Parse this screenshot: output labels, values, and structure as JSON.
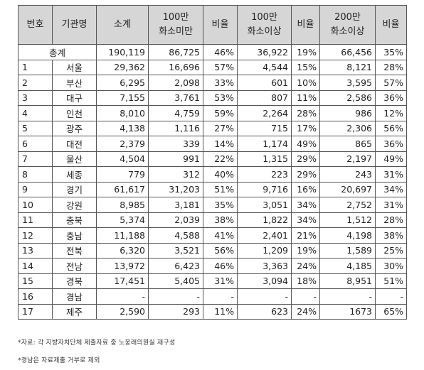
{
  "table": {
    "headers": [
      [
        "번호"
      ],
      [
        "기관명"
      ],
      [
        "소계"
      ],
      [
        "100만",
        "화소미만"
      ],
      [
        "비율"
      ],
      [
        "100만",
        "화소이상"
      ],
      [
        "비율"
      ],
      [
        "200만",
        "화소이상"
      ],
      [
        "비율"
      ]
    ],
    "total": {
      "label": "총계",
      "values": [
        "190,119",
        "86,725",
        "46%",
        "36,922",
        "19%",
        "66,456",
        "35%"
      ]
    },
    "rows": [
      [
        "1",
        "서울",
        "29,362",
        "16,696",
        "57%",
        "4,544",
        "15%",
        "8,121",
        "28%"
      ],
      [
        "2",
        "부산",
        "6,295",
        "2,098",
        "33%",
        "601",
        "10%",
        "3,595",
        "57%"
      ],
      [
        "3",
        "대구",
        "7,155",
        "3,761",
        "53%",
        "807",
        "11%",
        "2,586",
        "36%"
      ],
      [
        "4",
        "인천",
        "8,010",
        "4,759",
        "59%",
        "2,264",
        "28%",
        "986",
        "12%"
      ],
      [
        "5",
        "광주",
        "4,138",
        "1,116",
        "27%",
        "715",
        "17%",
        "2,306",
        "56%"
      ],
      [
        "6",
        "대전",
        "2,379",
        "339",
        "14%",
        "1,174",
        "49%",
        "865",
        "36%"
      ],
      [
        "7",
        "울산",
        "4,504",
        "991",
        "22%",
        "1,315",
        "29%",
        "2,197",
        "49%"
      ],
      [
        "8",
        "세종",
        "779",
        "312",
        "40%",
        "223",
        "29%",
        "243",
        "31%"
      ],
      [
        "9",
        "경기",
        "61,617",
        "31,203",
        "51%",
        "9,716",
        "16%",
        "20,697",
        "34%"
      ],
      [
        "10",
        "강원",
        "8,985",
        "3,181",
        "35%",
        "3,051",
        "34%",
        "2,752",
        "31%"
      ],
      [
        "11",
        "충북",
        "5,374",
        "2,039",
        "38%",
        "1,822",
        "34%",
        "1,512",
        "28%"
      ],
      [
        "12",
        "충남",
        "11,188",
        "4,588",
        "41%",
        "2,401",
        "21%",
        "4,198",
        "38%"
      ],
      [
        "13",
        "전북",
        "6,320",
        "3,521",
        "56%",
        "1,209",
        "19%",
        "1,589",
        "25%"
      ],
      [
        "14",
        "전남",
        "13,972",
        "6,423",
        "46%",
        "3,363",
        "24%",
        "4,185",
        "30%"
      ],
      [
        "15",
        "경북",
        "17,451",
        "5,405",
        "31%",
        "3,094",
        "18%",
        "8,951",
        "51%"
      ],
      [
        "16",
        "경남",
        "-",
        "-",
        "-",
        "-",
        "-",
        "-",
        "-"
      ],
      [
        "17",
        "제주",
        "2,590",
        "293",
        "11%",
        "623",
        "24%",
        "1673",
        "65%"
      ]
    ]
  },
  "footnotes": [
    "*자료: 각 지방자치단체 제출자료 중 노웅래의원실 재구성",
    "*경남은 자료제출 거부로 제외"
  ]
}
